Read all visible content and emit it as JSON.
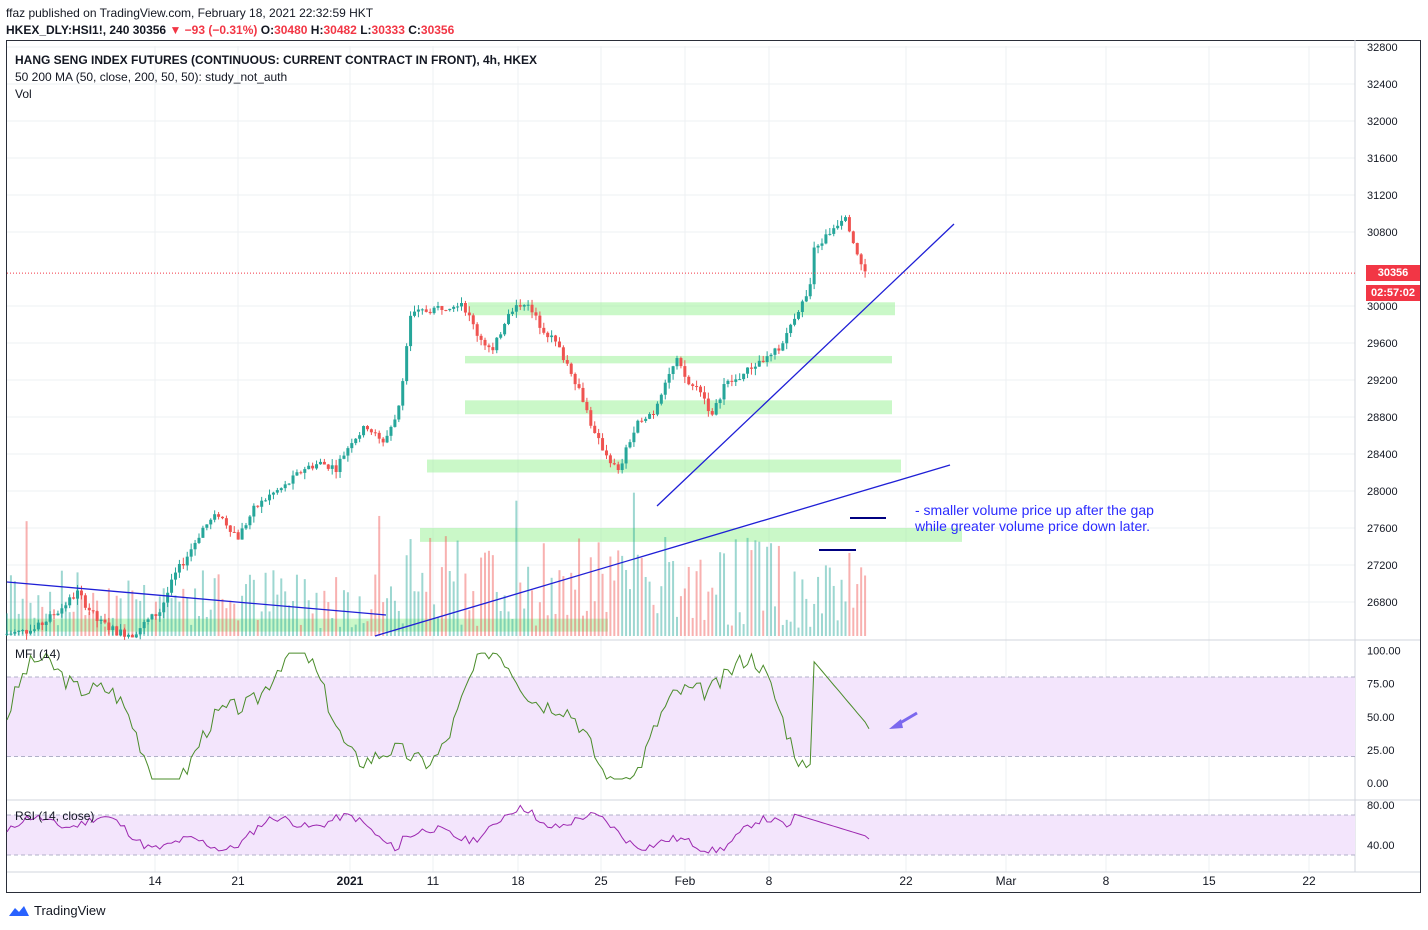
{
  "header": {
    "publisher": "ffaz published on TradingView.com, February 18, 2021 22:32:59 HKT",
    "symbol": "HKEX_DLY:HSI1!, 240",
    "last": "30356",
    "change": "▼ −93 (−0.31%)",
    "o_label": "O:",
    "o": "30480",
    "h_label": "H:",
    "h": "30482",
    "l_label": "L:",
    "l": "30333",
    "c_label": "C:",
    "c": "30356"
  },
  "legend": {
    "title": "HANG SENG INDEX FUTURES (CONTINUOUS: CURRENT CONTRACT IN FRONT), 4h, HKEX",
    "ma": "50 200 MA (50, close, 200, 50, 50): study_not_auth",
    "vol": "Vol"
  },
  "price_tag": {
    "price": "30356",
    "countdown": "02:57:02",
    "color": "#f23645"
  },
  "annotation": {
    "line1": "- smaller volume price up after the gap",
    "line2": "while greater volume price down later.",
    "color": "#2b2bff"
  },
  "mfi": {
    "label": "MFI (14)",
    "ticks": [
      "100.00",
      "75.00",
      "50.00",
      "25.00",
      "0.00"
    ]
  },
  "rsi": {
    "label": "RSI (14, close)",
    "ticks": [
      "80.00",
      "40.00"
    ]
  },
  "footer": {
    "brand": "TradingView"
  },
  "colors": {
    "up": "#26a69a",
    "down": "#ef5350",
    "zone": "#9ef29a",
    "trend": "#1f1fd6",
    "mfi_line": "#4a8c2a",
    "rsi_line": "#9c27b0",
    "band": "#f3e5fc"
  },
  "chart_data": {
    "type": "candlestick",
    "title": "HANG SENG INDEX FUTURES (CONTINUOUS: CURRENT CONTRACT IN FRONT), 4h, HKEX",
    "interval": "4h",
    "y_ticks": [
      32800,
      32400,
      32000,
      31600,
      31200,
      30800,
      30000,
      29600,
      29200,
      28800,
      28400,
      28000,
      27600,
      27200,
      26800
    ],
    "x_ticks": [
      "14",
      "21",
      "2021",
      "11",
      "18",
      "25",
      "Feb",
      "8",
      "22",
      "Mar",
      "8",
      "15",
      "22"
    ],
    "ylim": [
      26400,
      32800
    ],
    "last_price": 30356,
    "price_path": [
      [
        0,
        26450
      ],
      [
        8,
        26500
      ],
      [
        14,
        26700
      ],
      [
        19,
        26900
      ],
      [
        24,
        26600
      ],
      [
        29,
        26480
      ],
      [
        33,
        26450
      ],
      [
        37,
        26600
      ],
      [
        40,
        26700
      ],
      [
        44,
        27100
      ],
      [
        47,
        27300
      ],
      [
        51,
        27600
      ],
      [
        55,
        27750
      ],
      [
        60,
        27500
      ],
      [
        64,
        27800
      ],
      [
        68,
        27950
      ],
      [
        72,
        28050
      ],
      [
        77,
        28250
      ],
      [
        81,
        28300
      ],
      [
        85,
        28250
      ],
      [
        89,
        28550
      ],
      [
        93,
        28700
      ],
      [
        97,
        28500
      ],
      [
        101,
        28900
      ],
      [
        104,
        29900
      ],
      [
        108,
        29950
      ],
      [
        113,
        30000
      ],
      [
        117,
        30050
      ],
      [
        121,
        29700
      ],
      [
        125,
        29500
      ],
      [
        129,
        29950
      ],
      [
        133,
        30050
      ],
      [
        137,
        29800
      ],
      [
        141,
        29600
      ],
      [
        145,
        29300
      ],
      [
        148,
        29000
      ],
      [
        151,
        28600
      ],
      [
        154,
        28400
      ],
      [
        157,
        28200
      ],
      [
        160,
        28550
      ],
      [
        163,
        28800
      ],
      [
        166,
        28850
      ],
      [
        169,
        29200
      ],
      [
        172,
        29400
      ],
      [
        175,
        29150
      ],
      [
        178,
        29100
      ],
      [
        181,
        28800
      ],
      [
        184,
        29150
      ],
      [
        187,
        29200
      ],
      [
        190,
        29300
      ],
      [
        193,
        29400
      ],
      [
        196,
        29450
      ],
      [
        199,
        29600
      ],
      [
        202,
        29900
      ],
      [
        205,
        30100
      ],
      [
        206,
        30200
      ],
      [
        207,
        30600
      ],
      [
        210,
        30750
      ],
      [
        213,
        30900
      ],
      [
        215,
        31000
      ],
      [
        217,
        30700
      ],
      [
        219,
        30450
      ],
      [
        220,
        30356
      ]
    ],
    "support_zones": [
      {
        "low": 29900,
        "high": 30040
      },
      {
        "low": 29380,
        "high": 29460
      },
      {
        "low": 28830,
        "high": 28980
      },
      {
        "low": 28200,
        "high": 28340
      },
      {
        "low": 27450,
        "high": 27600
      },
      {
        "low": 26480,
        "high": 26620
      }
    ],
    "volume_highlights": [
      "low volume after the gap up",
      "high volume on the decline"
    ],
    "mfi_ylim": [
      0,
      100
    ],
    "mfi_band": [
      20,
      80
    ],
    "mfi_last": 41,
    "rsi_ylim": [
      30,
      90
    ],
    "rsi_band": [
      30,
      70
    ],
    "rsi_last": 46
  }
}
